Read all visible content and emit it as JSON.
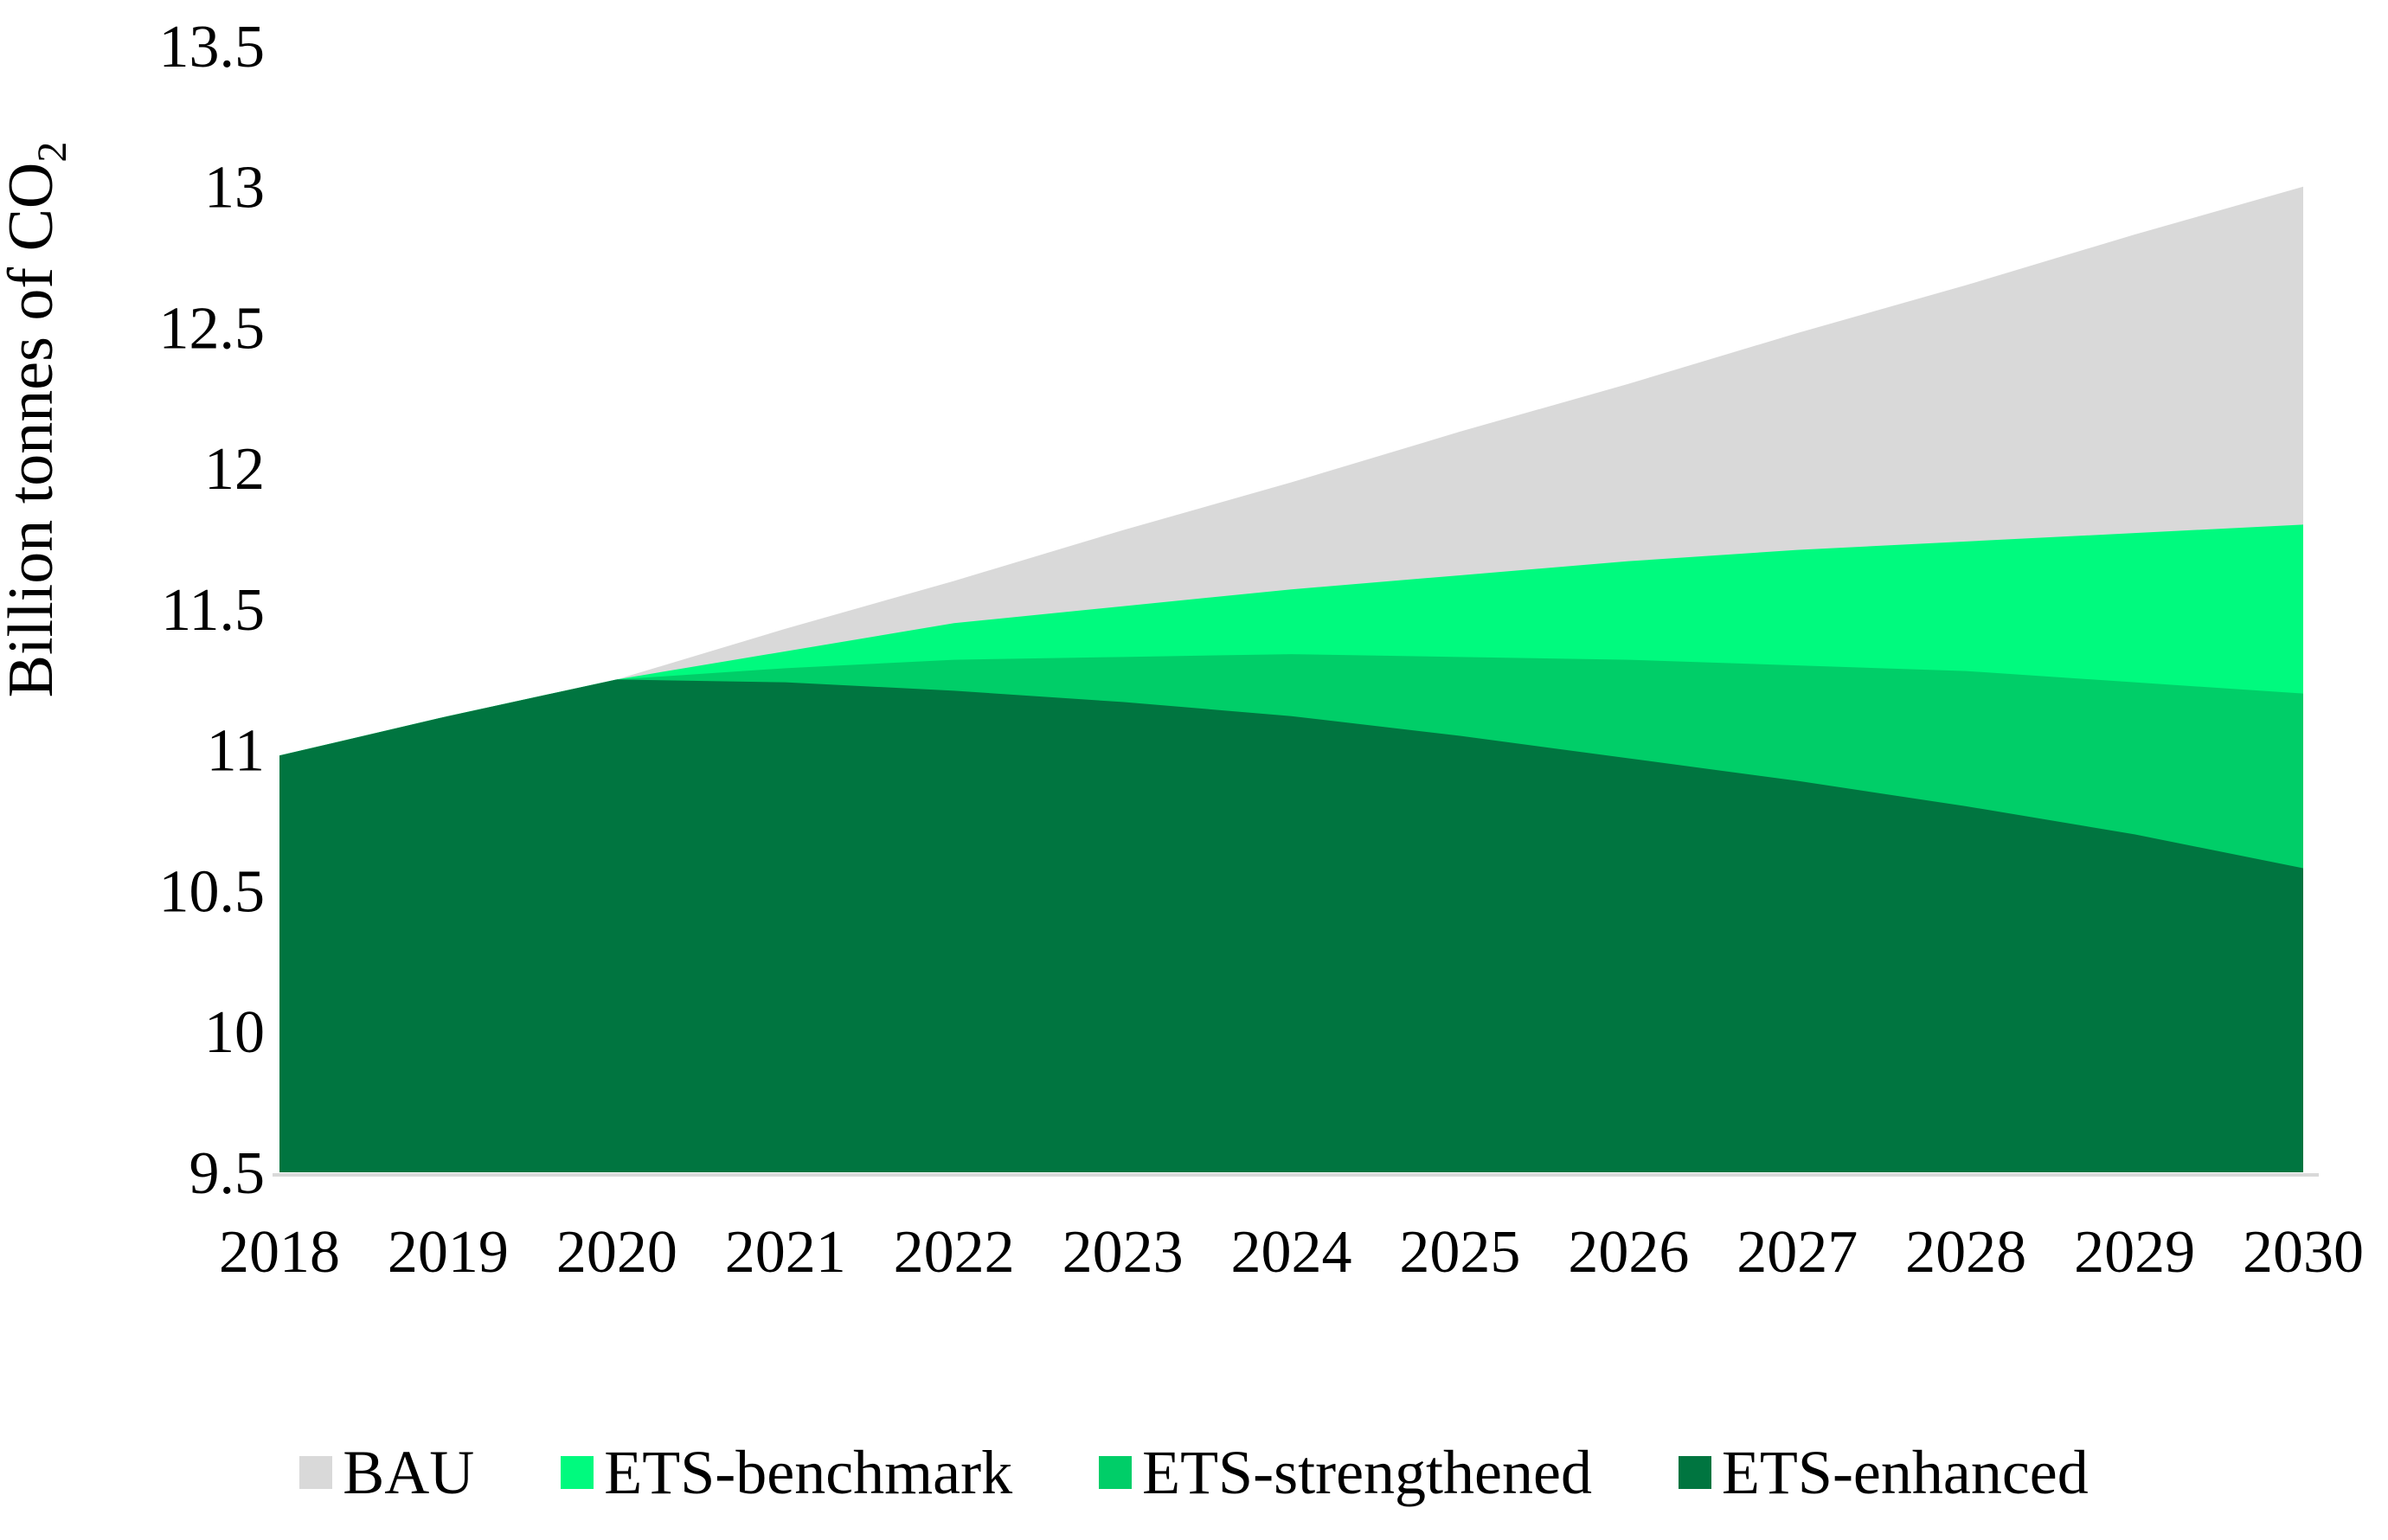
{
  "page": {
    "background": "#FFFFFF",
    "text_color": "#000000"
  },
  "chart_data": {
    "type": "area",
    "title": "",
    "ylabel_main": "Billion tonnes of CO",
    "ylabel_sub": "2",
    "xlabel": "",
    "x": [
      "2018",
      "2019",
      "2020",
      "2021",
      "2022",
      "2023",
      "2024",
      "2025",
      "2026",
      "2027",
      "2028",
      "2029",
      "2030"
    ],
    "series": [
      {
        "name": "BAU",
        "color": "#D9D9D9",
        "values": [
          10.98,
          11.12,
          11.25,
          11.43,
          11.6,
          11.78,
          11.95,
          12.13,
          12.3,
          12.48,
          12.65,
          12.83,
          13.0
        ]
      },
      {
        "name": "ETS-benchmark",
        "color": "#00FA7E",
        "values": [
          10.98,
          11.12,
          11.25,
          11.35,
          11.45,
          11.51,
          11.57,
          11.62,
          11.67,
          11.71,
          11.74,
          11.77,
          11.8
        ]
      },
      {
        "name": "ETS-strengthened",
        "color": "#00CE68",
        "values": [
          10.98,
          11.12,
          11.25,
          11.29,
          11.32,
          11.33,
          11.34,
          11.33,
          11.32,
          11.3,
          11.28,
          11.24,
          11.2
        ]
      },
      {
        "name": "ETS-enhanced",
        "color": "#007540",
        "values": [
          10.98,
          11.12,
          11.25,
          11.24,
          11.21,
          11.17,
          11.12,
          11.05,
          10.97,
          10.89,
          10.8,
          10.7,
          10.58
        ]
      }
    ],
    "ylim": [
      9.5,
      13.5
    ],
    "yticks": [
      9.5,
      10,
      10.5,
      11,
      11.5,
      12,
      12.5,
      13,
      13.5
    ],
    "ytick_labels": [
      "9.5",
      "10",
      "10.5",
      "11",
      "11.5",
      "12",
      "12.5",
      "13",
      "13.5"
    ],
    "grid": false,
    "legend_position": "bottom",
    "axis_color": "#D9D9D9"
  }
}
